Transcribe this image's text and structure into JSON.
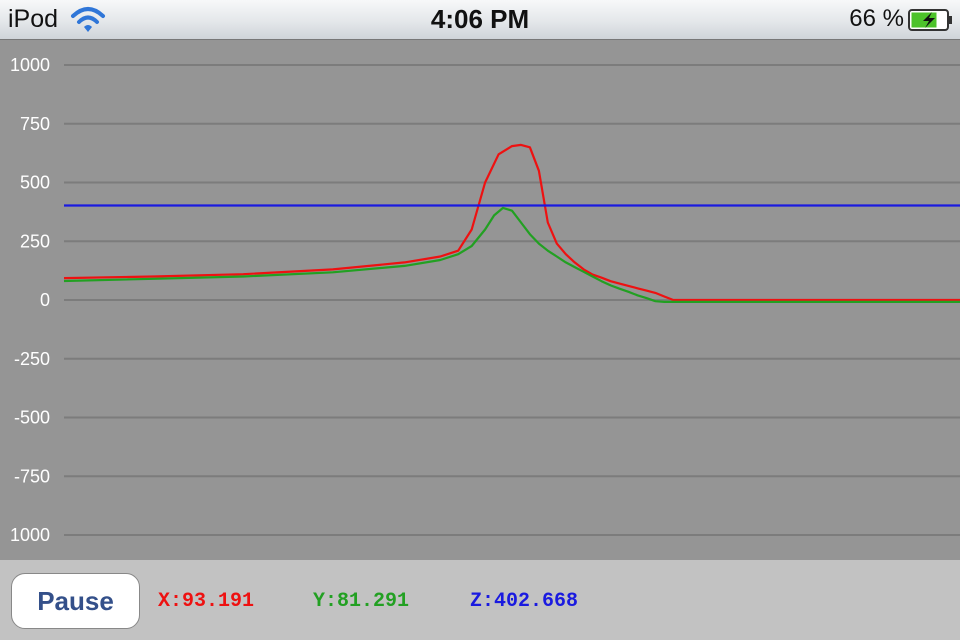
{
  "status_bar": {
    "carrier": "iPod",
    "time": "4:06 PM",
    "battery_percent": "66 %",
    "icons": [
      "wifi-icon",
      "battery-charging-icon"
    ]
  },
  "toolbar": {
    "pause_label": "Pause",
    "x_readout": "X:93.191",
    "y_readout": "Y:81.291",
    "z_readout": "Z:402.668"
  },
  "colors": {
    "graph_background": "#959595",
    "toolbar_background": "#c2c2c2",
    "x_series": "#ee1111",
    "y_series": "#22a022",
    "z_series": "#1a1ae0",
    "pause_text": "#34508a"
  },
  "chart_data": {
    "type": "line",
    "ylim": [
      -1000,
      1000
    ],
    "xlim": [
      0,
      100
    ],
    "grid": true,
    "y_tick_labels": [
      "1000",
      "750",
      "500",
      "250",
      "0",
      "-250",
      "-500",
      "-750",
      "1000"
    ],
    "series": [
      {
        "color": "#ee1111",
        "x": [
          0,
          10,
          20,
          30,
          38,
          42,
          44,
          45.5,
          47,
          48.5,
          50,
          51,
          52,
          53,
          54,
          55,
          56,
          57,
          58,
          59,
          60,
          61,
          62,
          63,
          64,
          65,
          66,
          67,
          68,
          69,
          70,
          80,
          90,
          100
        ],
        "y": [
          93,
          100,
          110,
          130,
          160,
          185,
          210,
          300,
          500,
          620,
          655,
          660,
          650,
          550,
          330,
          240,
          195,
          160,
          130,
          108,
          95,
          80,
          70,
          60,
          50,
          40,
          30,
          15,
          0,
          0,
          0,
          0,
          0,
          0
        ]
      },
      {
        "color": "#22a022",
        "x": [
          0,
          10,
          20,
          30,
          38,
          42,
          44,
          45.5,
          47,
          48,
          49,
          50,
          51,
          52,
          53,
          54,
          55,
          56,
          57,
          58,
          59,
          60,
          61,
          62,
          63,
          64,
          65,
          66,
          67,
          68,
          70,
          80,
          90,
          100
        ],
        "y": [
          81,
          90,
          100,
          118,
          145,
          170,
          195,
          230,
          300,
          360,
          392,
          380,
          330,
          280,
          240,
          210,
          185,
          160,
          140,
          120,
          100,
          80,
          62,
          48,
          35,
          20,
          8,
          -5,
          -8,
          -8,
          -8,
          -8,
          -8,
          -8
        ]
      },
      {
        "color": "#1a1ae0",
        "x": [
          0,
          100
        ],
        "y": [
          402,
          402
        ]
      }
    ]
  }
}
